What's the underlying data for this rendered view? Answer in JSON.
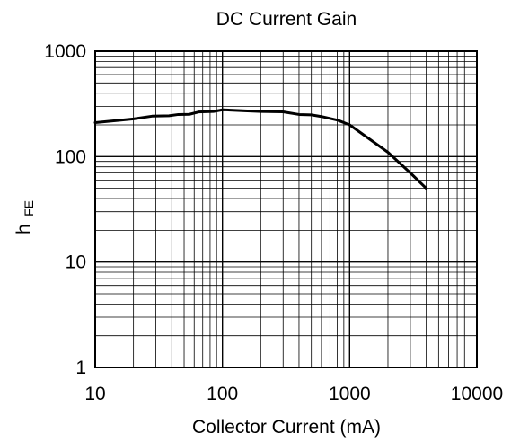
{
  "chart_data": {
    "type": "line",
    "title": "DC Current Gain",
    "xlabel": "Collector Current (mA)",
    "ylabel": {
      "main": "h",
      "subscript": "FE"
    },
    "x_scale": "log",
    "y_scale": "log",
    "xlim": [
      10,
      10000
    ],
    "ylim": [
      1,
      1000
    ],
    "grid": true,
    "x_ticks": [
      {
        "value": 10,
        "label": "10"
      },
      {
        "value": 100,
        "label": "100"
      },
      {
        "value": 1000,
        "label": "1000"
      },
      {
        "value": 10000,
        "label": "10000"
      }
    ],
    "y_ticks": [
      {
        "value": 1,
        "label": "1"
      },
      {
        "value": 10,
        "label": "10"
      },
      {
        "value": 100,
        "label": "100"
      },
      {
        "value": 1000,
        "label": "1000"
      }
    ],
    "series": [
      {
        "color": "#000000",
        "points": [
          {
            "x": 10,
            "y": 210
          },
          {
            "x": 20,
            "y": 228
          },
          {
            "x": 28,
            "y": 242
          },
          {
            "x": 38,
            "y": 244
          },
          {
            "x": 45,
            "y": 251
          },
          {
            "x": 55,
            "y": 252
          },
          {
            "x": 65,
            "y": 265
          },
          {
            "x": 85,
            "y": 268
          },
          {
            "x": 100,
            "y": 278
          },
          {
            "x": 150,
            "y": 272
          },
          {
            "x": 200,
            "y": 268
          },
          {
            "x": 300,
            "y": 266
          },
          {
            "x": 400,
            "y": 251
          },
          {
            "x": 500,
            "y": 249
          },
          {
            "x": 600,
            "y": 240
          },
          {
            "x": 800,
            "y": 222
          },
          {
            "x": 1000,
            "y": 200
          },
          {
            "x": 2000,
            "y": 110
          },
          {
            "x": 3000,
            "y": 70
          },
          {
            "x": 4000,
            "y": 50
          }
        ]
      }
    ]
  }
}
